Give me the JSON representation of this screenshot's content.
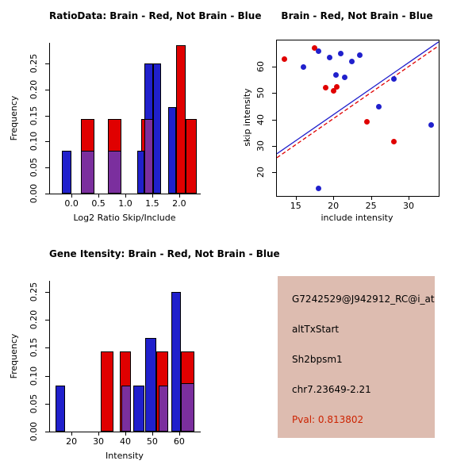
{
  "colors": {
    "red": "#e00000",
    "blue": "#2020cc",
    "purple": "#7b2f9e",
    "pval_red": "#cc2200",
    "info_bg": "#ddbcb0"
  },
  "chart_data": [
    {
      "type": "bar",
      "title": "RatioData: Brain - Red, Not Brain - Blue",
      "xlabel": "Log2 Ratio Skip/Include",
      "ylabel": "Frequency",
      "xlim": [
        -0.4,
        2.4
      ],
      "ylim": [
        0,
        0.29
      ],
      "xticks": [
        0.0,
        0.5,
        1.0,
        1.5,
        2.0
      ],
      "xtick_labels": [
        "0.0",
        "0.5",
        "1.0",
        "1.5",
        "2.0"
      ],
      "yticks": [
        0.0,
        0.05,
        0.1,
        0.15,
        0.2,
        0.25
      ],
      "ytick_labels": [
        "0.00",
        "0.05",
        "0.10",
        "0.15",
        "0.20",
        "0.25"
      ],
      "legend_note": "red = Brain, blue = Not Brain, purple = overlap",
      "bars": [
        {
          "x0": 0.17,
          "x1": 0.42,
          "h": 0.143,
          "color": "red"
        },
        {
          "x0": 0.67,
          "x1": 0.92,
          "h": 0.143,
          "color": "red"
        },
        {
          "x0": 1.3,
          "x1": 1.52,
          "h": 0.143,
          "color": "red"
        },
        {
          "x0": 1.95,
          "x1": 2.12,
          "h": 0.285,
          "color": "red"
        },
        {
          "x0": 2.12,
          "x1": 2.33,
          "h": 0.143,
          "color": "red"
        },
        {
          "x0": -0.18,
          "x1": 0.0,
          "h": 0.083,
          "color": "blue"
        },
        {
          "x0": 1.22,
          "x1": 1.35,
          "h": 0.083,
          "color": "blue"
        },
        {
          "x0": 1.35,
          "x1": 1.52,
          "h": 0.25,
          "color": "blue"
        },
        {
          "x0": 1.52,
          "x1": 1.66,
          "h": 0.25,
          "color": "blue"
        },
        {
          "x0": 1.8,
          "x1": 1.95,
          "h": 0.167,
          "color": "blue"
        },
        {
          "x0": 0.17,
          "x1": 0.42,
          "h": 0.083,
          "color": "purple"
        },
        {
          "x0": 0.67,
          "x1": 0.92,
          "h": 0.083,
          "color": "purple"
        },
        {
          "x0": 1.35,
          "x1": 1.52,
          "h": 0.143,
          "color": "purple"
        }
      ]
    },
    {
      "type": "scatter",
      "title": "Brain - Red, Not Brain - Blue",
      "xlabel": "include intensity",
      "ylabel": "skip intensity",
      "xlim": [
        12.5,
        34
      ],
      "ylim": [
        11,
        70
      ],
      "xticks": [
        15,
        20,
        25,
        30
      ],
      "xtick_labels": [
        "15",
        "20",
        "25",
        "30"
      ],
      "yticks": [
        20,
        30,
        40,
        50,
        60
      ],
      "ytick_labels": [
        "20",
        "30",
        "40",
        "50",
        "60"
      ],
      "series": [
        {
          "name": "Brain",
          "color": "red",
          "points": [
            [
              13.5,
              63
            ],
            [
              17.5,
              67
            ],
            [
              19,
              52
            ],
            [
              20,
              51
            ],
            [
              20.5,
              52.5
            ],
            [
              24.5,
              39
            ],
            [
              28,
              31.5
            ]
          ]
        },
        {
          "name": "Not Brain",
          "color": "blue",
          "points": [
            [
              16,
              60
            ],
            [
              18,
              66
            ],
            [
              19.5,
              63.5
            ],
            [
              20.3,
              57
            ],
            [
              21,
              65
            ],
            [
              21.5,
              56
            ],
            [
              22.5,
              62
            ],
            [
              23.5,
              64.5
            ],
            [
              18,
              14
            ],
            [
              26,
              45
            ],
            [
              28,
              55.5
            ],
            [
              33,
              38
            ]
          ]
        }
      ],
      "lines": [
        {
          "color": "blue",
          "style": "solid",
          "x": [
            12.5,
            34
          ],
          "y": [
            27,
            69.5
          ]
        },
        {
          "color": "red",
          "style": "dashed",
          "x": [
            12.5,
            34
          ],
          "y": [
            25.5,
            68
          ]
        }
      ]
    },
    {
      "type": "bar",
      "title": "Gene Itensity: Brain - Red, Not Brain - Blue",
      "xlabel": "Intensity",
      "ylabel": "Frequency",
      "xlim": [
        12,
        68
      ],
      "ylim": [
        0,
        0.27
      ],
      "xticks": [
        20,
        30,
        40,
        50,
        60
      ],
      "xtick_labels": [
        "20",
        "30",
        "40",
        "50",
        "60"
      ],
      "yticks": [
        0.0,
        0.05,
        0.1,
        0.15,
        0.2,
        0.25
      ],
      "ytick_labels": [
        "0.00",
        "0.05",
        "0.10",
        "0.15",
        "0.20",
        "0.25"
      ],
      "legend_note": "red = Brain, blue = Not Brain, purple = overlap",
      "bars": [
        {
          "x0": 31,
          "x1": 35.5,
          "h": 0.143,
          "color": "red"
        },
        {
          "x0": 38,
          "x1": 42,
          "h": 0.143,
          "color": "red"
        },
        {
          "x0": 51.5,
          "x1": 56,
          "h": 0.143,
          "color": "red"
        },
        {
          "x0": 60.5,
          "x1": 65.5,
          "h": 0.143,
          "color": "red"
        },
        {
          "x0": 14,
          "x1": 17.5,
          "h": 0.083,
          "color": "blue"
        },
        {
          "x0": 43,
          "x1": 47,
          "h": 0.083,
          "color": "blue"
        },
        {
          "x0": 47.5,
          "x1": 51.5,
          "h": 0.167,
          "color": "blue"
        },
        {
          "x0": 57,
          "x1": 60.5,
          "h": 0.25,
          "color": "blue"
        },
        {
          "x0": 38.5,
          "x1": 42,
          "h": 0.083,
          "color": "purple"
        },
        {
          "x0": 52.5,
          "x1": 56,
          "h": 0.083,
          "color": "purple"
        },
        {
          "x0": 60.5,
          "x1": 65.5,
          "h": 0.086,
          "color": "purple"
        }
      ]
    }
  ],
  "info_panel": {
    "bg": "#ddbcb0",
    "lines": [
      {
        "text": "G7242529@J942912_RC@i_at",
        "color": "#000000"
      },
      {
        "text": "altTxStart",
        "color": "#000000"
      },
      {
        "text": "Sh2bpsm1",
        "color": "#000000"
      },
      {
        "text": "chr7.23649-2.21",
        "color": "#000000"
      },
      {
        "text": "Pval: 0.813802",
        "color": "#cc2200"
      }
    ]
  }
}
